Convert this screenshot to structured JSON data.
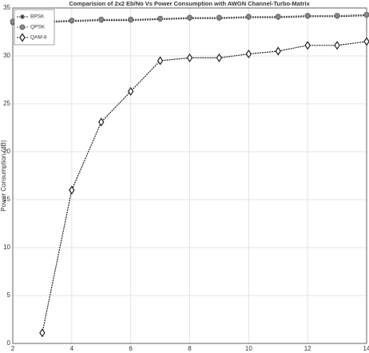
{
  "chart_data": {
    "type": "line",
    "title": "Comparision of 2x2 Eb/No Vs Power Consumption with AWGN Channel-Turbo-Matrix",
    "y_label": "Power Consumption (dB)",
    "x": [
      2,
      3,
      4,
      5,
      6,
      7,
      8,
      9,
      10,
      11,
      12,
      13,
      14
    ],
    "series": [
      {
        "name": "BPSK",
        "color": "#333333",
        "marker": "star",
        "values": [
          33.4,
          33.5,
          33.6,
          33.7,
          33.7,
          33.8,
          33.9,
          33.9,
          34.0,
          34.0,
          34.1,
          34.1,
          34.2
        ]
      },
      {
        "name": "QPSK",
        "color": "#666666",
        "marker": "circle",
        "values": [
          33.6,
          33.6,
          33.7,
          33.8,
          33.8,
          33.9,
          34.0,
          34.0,
          34.1,
          34.1,
          34.2,
          34.2,
          34.3
        ]
      },
      {
        "name": "QAM-8",
        "color": "#222222",
        "marker": "diamond",
        "values": [
          null,
          1.1,
          16,
          23.1,
          26.3,
          29.5,
          29.8,
          29.8,
          30.2,
          30.5,
          31.1,
          31.1,
          31.5
        ]
      }
    ],
    "xlim": [
      2,
      14
    ],
    "xticks": [
      2,
      4,
      6,
      8,
      10,
      12,
      14
    ],
    "ylim": [
      0,
      35
    ],
    "yticks": [
      0,
      5,
      10,
      15,
      20,
      25,
      30,
      35
    ],
    "grid": true,
    "legend": "upper-left"
  }
}
